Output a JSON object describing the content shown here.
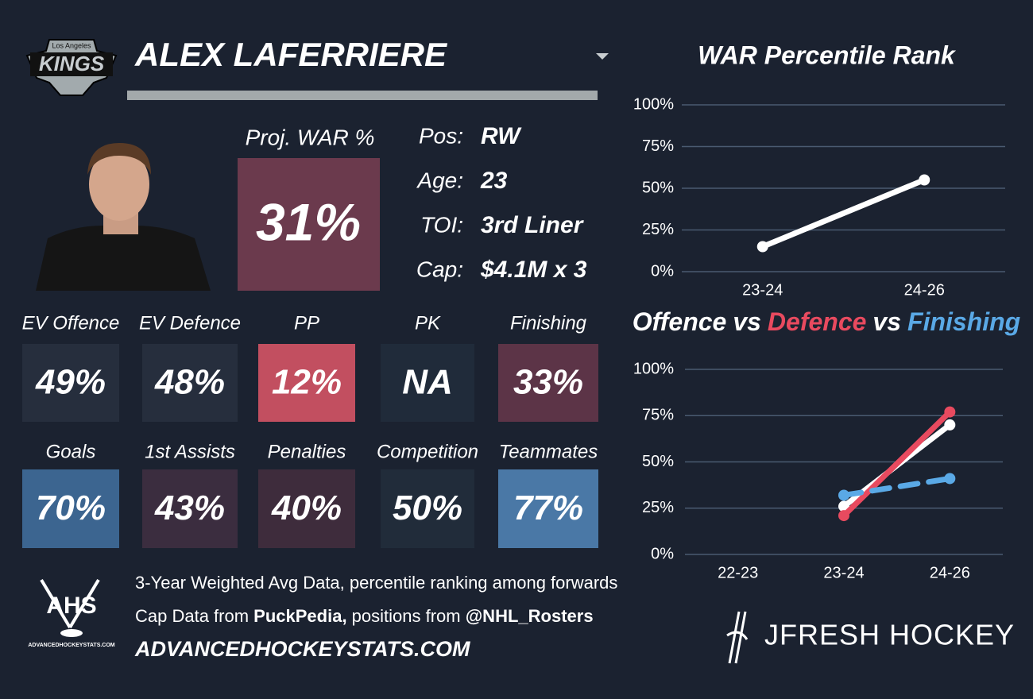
{
  "header": {
    "player_name": "ALEX LAFERRIERE",
    "team_logo_top": "Los Angeles",
    "team_logo_name": "KINGS"
  },
  "proj_war": {
    "label": "Proj. WAR %",
    "value": "31%",
    "color": "#6b3a4d"
  },
  "bio": [
    {
      "label": "Pos:",
      "value": "RW"
    },
    {
      "label": "Age:",
      "value": "23"
    },
    {
      "label": "TOI:",
      "value": "3rd Liner"
    },
    {
      "label": "Cap:",
      "value": "$4.1M x 3"
    }
  ],
  "tiles": [
    {
      "label": "EV Offence",
      "value": "49%",
      "color": "#262e3d"
    },
    {
      "label": "EV Defence",
      "value": "48%",
      "color": "#262e3d"
    },
    {
      "label": "PP",
      "value": "12%",
      "color": "#c24f60"
    },
    {
      "label": "PK",
      "value": "NA",
      "color": "#202b3a"
    },
    {
      "label": "Finishing",
      "value": "33%",
      "color": "#5c3447"
    },
    {
      "label": "Goals",
      "value": "70%",
      "color": "#3c6590"
    },
    {
      "label": "1st Assists",
      "value": "43%",
      "color": "#3b2d3f"
    },
    {
      "label": "Penalties",
      "value": "40%",
      "color": "#3e2c3c"
    },
    {
      "label": "Competition",
      "value": "50%",
      "color": "#212c3a"
    },
    {
      "label": "Teammates",
      "value": "77%",
      "color": "#4a78a6"
    }
  ],
  "footer": {
    "lines": [
      [
        {
          "text": "3-Year Weighted Avg Data, percentile ranking among forwards",
          "bold": false
        }
      ],
      [
        {
          "text": "Cap Data from ",
          "bold": false
        },
        {
          "text": "PuckPedia,",
          "bold": true
        },
        {
          "text": " positions from ",
          "bold": false
        },
        {
          "text": "@NHL_Rosters",
          "bold": true
        }
      ],
      [
        {
          "text": "ADVANCEDHOCKEYSTATS.COM",
          "bold": true,
          "italic": true
        }
      ]
    ],
    "ahs_logo": "AHS",
    "ahs_url": "ADVANCEDHOCKEYSTATS.COM",
    "brand": "JFRESH HOCKEY"
  },
  "chart_data": [
    {
      "type": "line",
      "title": "WAR Percentile Rank",
      "categories": [
        "23-24",
        "24-26"
      ],
      "series": [
        {
          "name": null,
          "color": "#ffffff",
          "values": [
            15,
            55
          ]
        }
      ],
      "ylim": [
        0,
        100
      ],
      "yticks": [
        {
          "value": 0,
          "label": "0%"
        },
        {
          "value": 25,
          "label": "25%"
        },
        {
          "value": 50,
          "label": "50%"
        },
        {
          "value": 75,
          "label": "75%"
        },
        {
          "value": 100,
          "label": "100%"
        }
      ],
      "grid": true
    },
    {
      "type": "line",
      "title_joiner": "vs",
      "categories": [
        "22-23",
        "23-24",
        "24-26"
      ],
      "series": [
        {
          "name": "Offence",
          "color": "#ffffff",
          "values": [
            null,
            26,
            70
          ]
        },
        {
          "name": "Defence",
          "color": "#e84a5f",
          "values": [
            null,
            21,
            77
          ]
        },
        {
          "name": "Finishing",
          "color": "#5aa9e6",
          "values": [
            null,
            32,
            41
          ],
          "dashed": true
        }
      ],
      "ylim": [
        0,
        100
      ],
      "yticks": [
        {
          "value": 0,
          "label": "0%"
        },
        {
          "value": 25,
          "label": "25%"
        },
        {
          "value": 50,
          "label": "50%"
        },
        {
          "value": 75,
          "label": "75%"
        },
        {
          "value": 100,
          "label": "100%"
        }
      ],
      "grid": true
    }
  ]
}
